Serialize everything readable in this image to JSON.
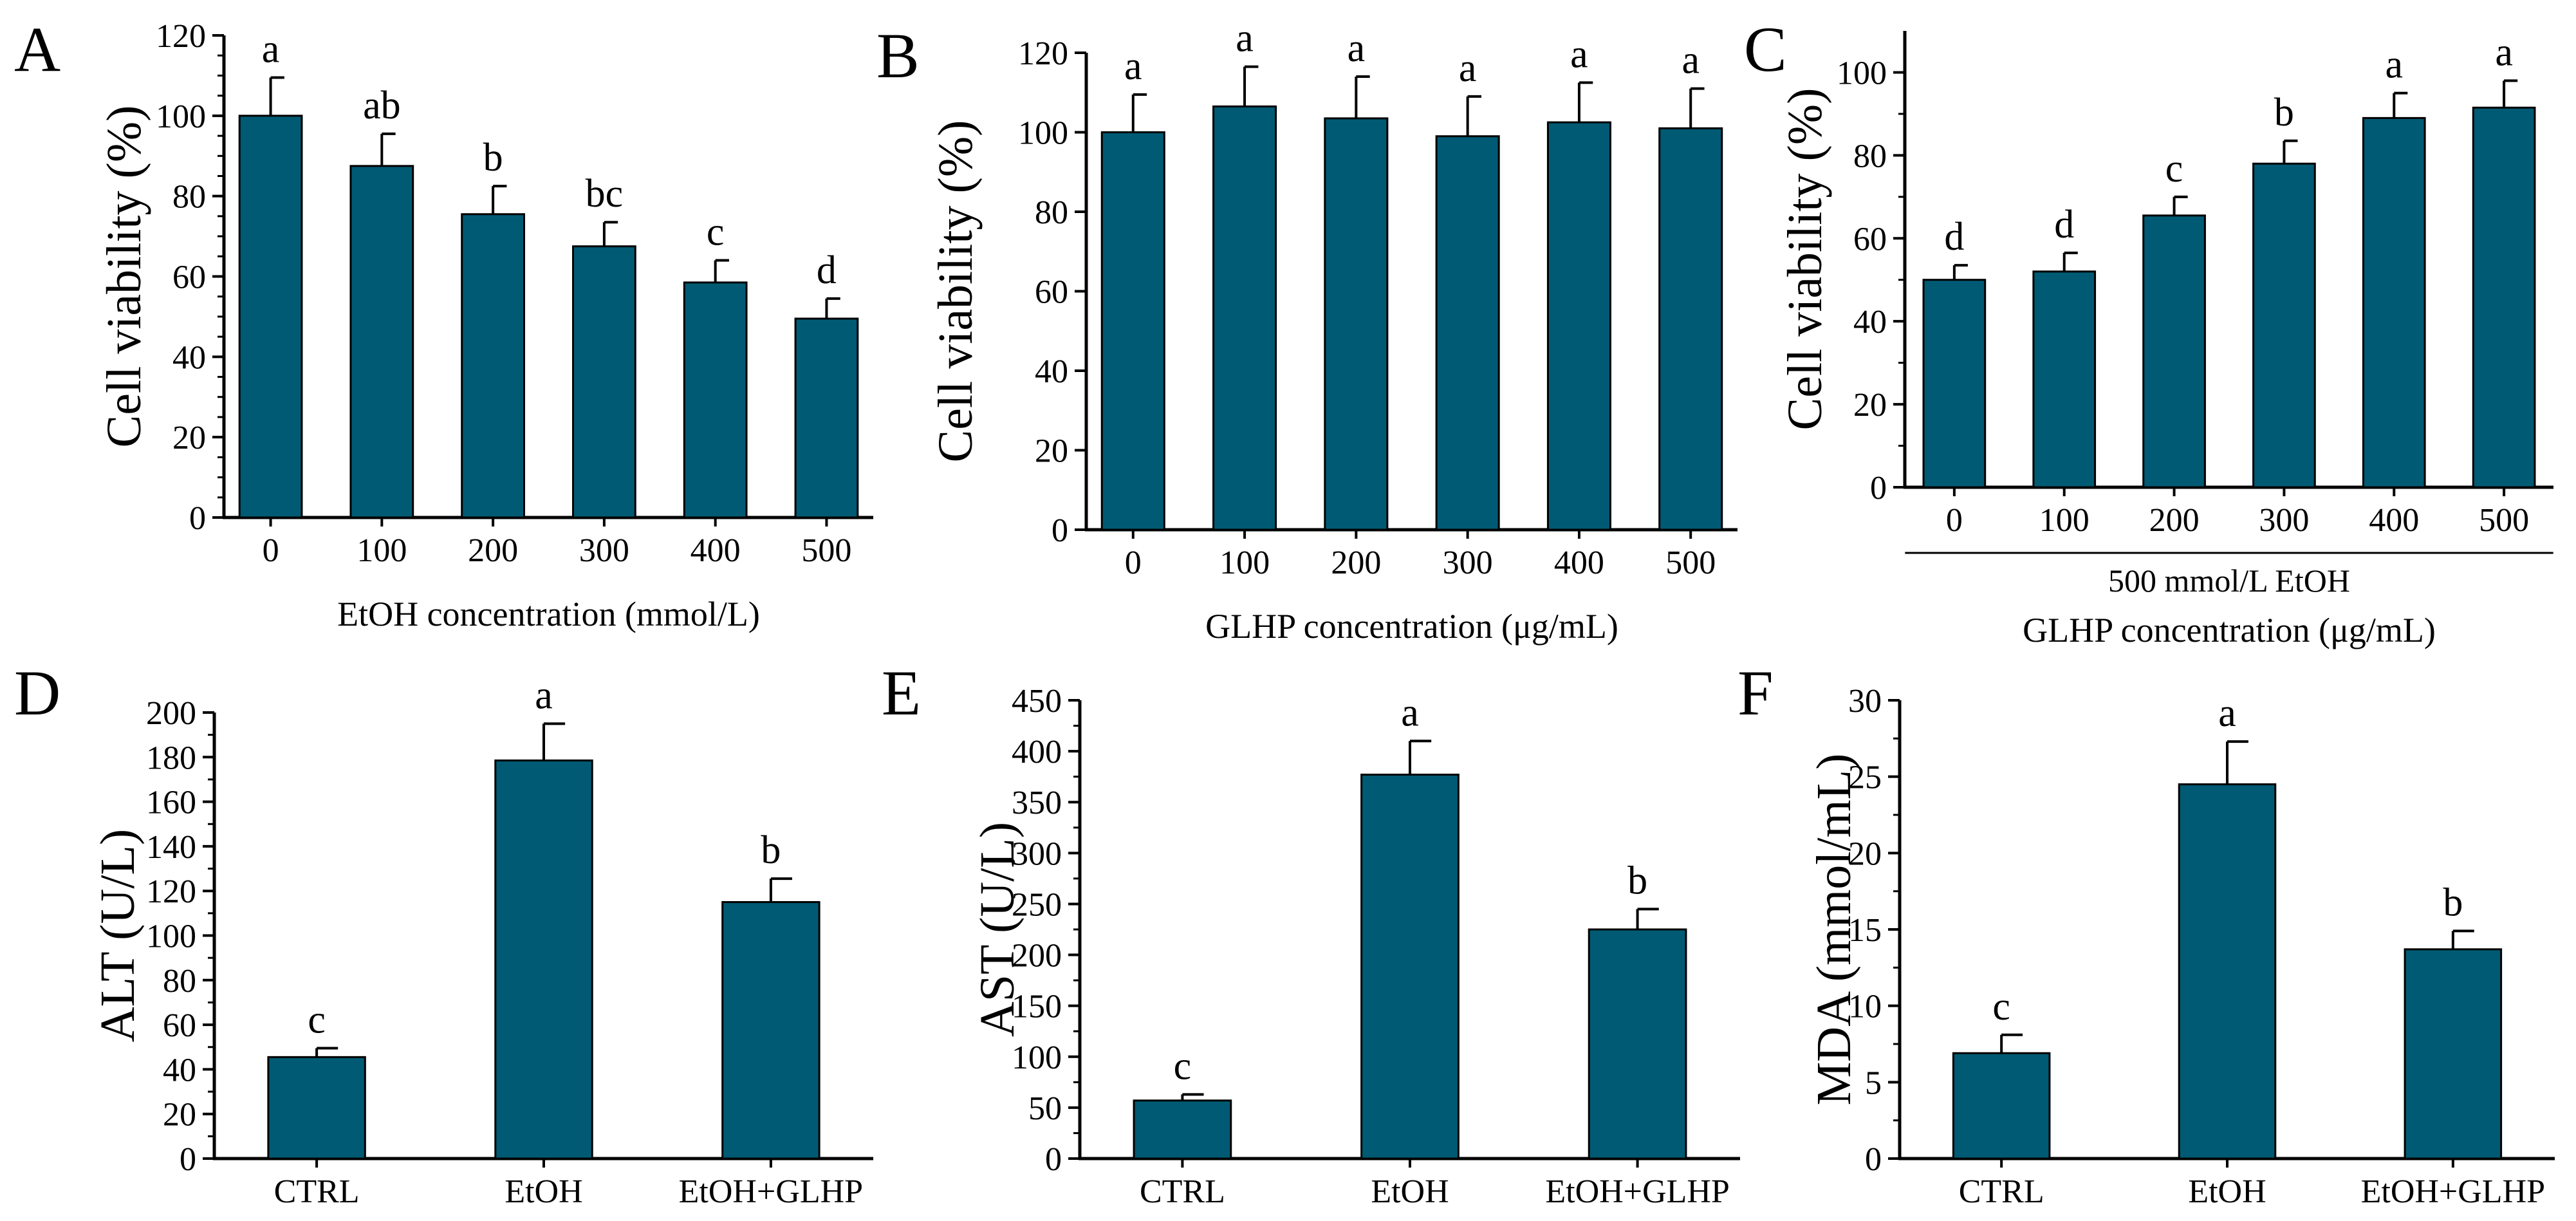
{
  "figure": {
    "bar_color": "#015a73",
    "axis_color": "#000000"
  },
  "chart_data": [
    {
      "panel": "A",
      "type": "bar",
      "categories": [
        "0",
        "100",
        "200",
        "300",
        "400",
        "500"
      ],
      "values": [
        100,
        87.5,
        75.5,
        67.5,
        58.5,
        49.5
      ],
      "errors": [
        9.5,
        8,
        7,
        6,
        5.5,
        5
      ],
      "significance": [
        "a",
        "ab",
        "b",
        "bc",
        "c",
        "d"
      ],
      "xlabel": "EtOH concentration (mmol/L)",
      "ylabel": "Cell viability (%)",
      "ylim": [
        0,
        120
      ],
      "yticks": [
        "0",
        "20",
        "40",
        "60",
        "80",
        "100",
        "120"
      ]
    },
    {
      "panel": "B",
      "type": "bar",
      "categories": [
        "0",
        "100",
        "200",
        "300",
        "400",
        "500"
      ],
      "values": [
        100,
        106.5,
        103.5,
        99,
        102.5,
        101
      ],
      "errors": [
        9.5,
        10,
        10.5,
        10,
        10,
        10
      ],
      "significance": [
        "a",
        "a",
        "a",
        "a",
        "a",
        "a"
      ],
      "xlabel": "GLHP concentration (μg/mL)",
      "ylabel": "Cell viability (%)",
      "ylim": [
        0,
        120
      ],
      "yticks": [
        "0",
        "20",
        "40",
        "60",
        "80",
        "100",
        "120"
      ]
    },
    {
      "panel": "C",
      "type": "bar",
      "categories": [
        "0",
        "100",
        "200",
        "300",
        "400",
        "500"
      ],
      "values": [
        50,
        52,
        65.5,
        78,
        89,
        91.5
      ],
      "errors": [
        3.5,
        4.5,
        4.5,
        5.5,
        6,
        6.5
      ],
      "significance": [
        "d",
        "d",
        "c",
        "b",
        "a",
        "a"
      ],
      "group_note": "500 mmol/L EtOH",
      "xlabel": "GLHP concentration (μg/mL)",
      "ylabel": "Cell viability (%)",
      "ylim": [
        0,
        110
      ],
      "yticks": [
        "0",
        "20",
        "40",
        "60",
        "80",
        "100"
      ]
    },
    {
      "panel": "D",
      "type": "bar",
      "categories": [
        "CTRL",
        "EtOH",
        "EtOH+GLHP"
      ],
      "values": [
        45.5,
        178.5,
        115
      ],
      "errors": [
        4,
        16.5,
        10.5
      ],
      "significance": [
        "c",
        "a",
        "b"
      ],
      "xlabel": "",
      "ylabel": "ALT (U/L)",
      "ylim": [
        0,
        200
      ],
      "yticks": [
        "0",
        "20",
        "40",
        "60",
        "80",
        "100",
        "120",
        "140",
        "160",
        "180",
        "200"
      ]
    },
    {
      "panel": "E",
      "type": "bar",
      "categories": [
        "CTRL",
        "EtOH",
        "EtOH+GLHP"
      ],
      "values": [
        57,
        377,
        225
      ],
      "errors": [
        6,
        33,
        20
      ],
      "significance": [
        "c",
        "a",
        "b"
      ],
      "xlabel": "",
      "ylabel": "AST (U/L)",
      "ylim": [
        0,
        450
      ],
      "yticks": [
        "0",
        "50",
        "100",
        "150",
        "200",
        "250",
        "300",
        "350",
        "400",
        "450"
      ]
    },
    {
      "panel": "F",
      "type": "bar",
      "categories": [
        "CTRL",
        "EtOH",
        "EtOH+GLHP"
      ],
      "values": [
        6.9,
        24.5,
        13.7
      ],
      "errors": [
        1.2,
        2.8,
        1.2
      ],
      "significance": [
        "c",
        "a",
        "b"
      ],
      "xlabel": "",
      "ylabel": "MDA (mmol/mL)",
      "ylim": [
        0,
        30
      ],
      "yticks": [
        "0",
        "5",
        "10",
        "15",
        "20",
        "25",
        "30"
      ]
    }
  ]
}
